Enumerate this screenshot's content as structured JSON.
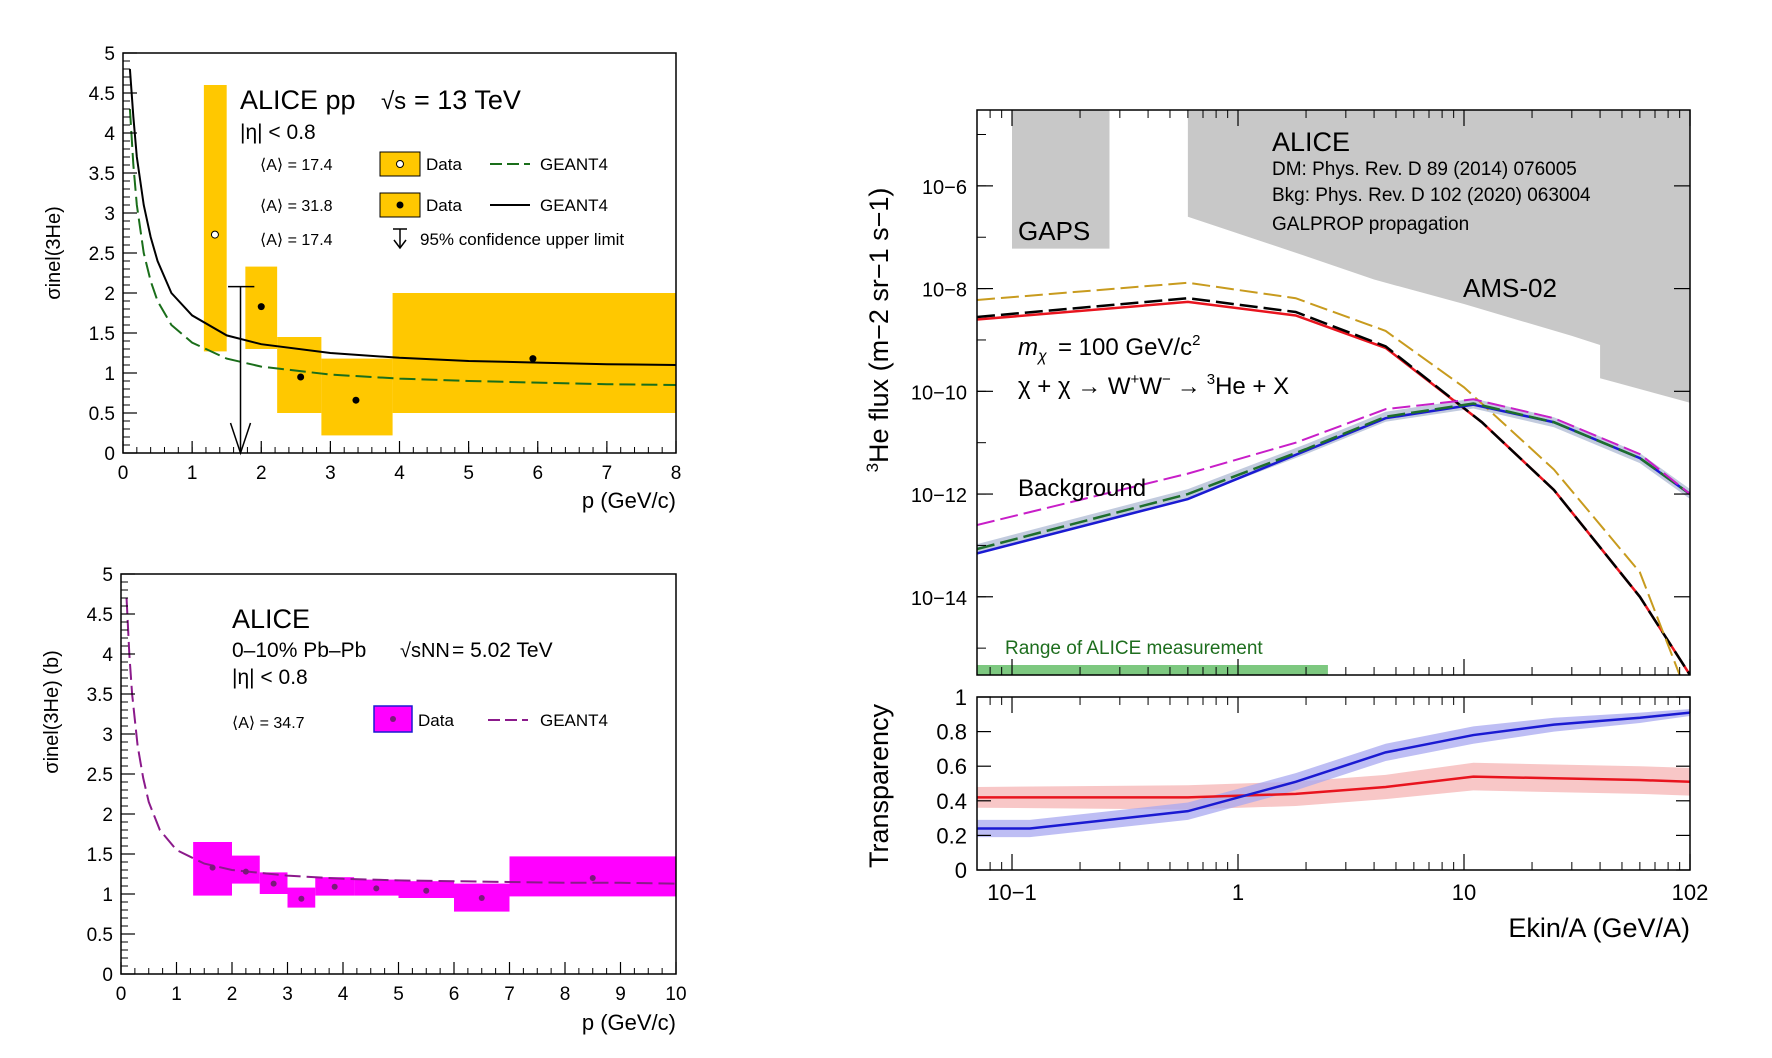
{
  "chart_data": [
    {
      "type": "scatter",
      "id": "pp",
      "title": "ALICE pp",
      "energy": "= 13 TeV",
      "eta": "|η| < 0.8",
      "xlabel": "p (GeV/c)",
      "ylabel": "σinel(3He)",
      "xlim": [
        0,
        8
      ],
      "ylim": [
        0,
        5
      ],
      "xticks": [
        0,
        1,
        2,
        3,
        4,
        5,
        6,
        7,
        8
      ],
      "yticks": [
        0,
        0.5,
        1,
        1.5,
        2,
        2.5,
        3,
        3.5,
        4,
        4.5,
        5
      ],
      "legend": [
        {
          "A": "⟨A⟩ = 17.4",
          "marker": "open",
          "label": "Data",
          "model": "GEANT4",
          "style": "green-dashed"
        },
        {
          "A": "⟨A⟩ = 31.8",
          "marker": "filled",
          "label": "Data",
          "model": "GEANT4",
          "style": "black-solid"
        },
        {
          "A": "⟨A⟩ = 17.4",
          "marker": "arrow",
          "label": "95% confidence upper limit"
        }
      ],
      "colors": {
        "box": "#ffc800",
        "geant_a": "#1a6e1a",
        "geant_b": "#000000"
      },
      "series": [
        {
          "name": "Data ⟨A⟩ = 17.4",
          "marker": "open",
          "points": [
            {
              "x": 1.33,
              "y": 2.73,
              "xlo": 1.17,
              "xhi": 1.5,
              "ylo": 1.27,
              "yhi": 4.6
            }
          ]
        },
        {
          "name": "Data ⟨A⟩ = 31.8",
          "marker": "filled",
          "points": [
            {
              "x": 2.0,
              "y": 1.83,
              "xlo": 1.77,
              "xhi": 2.23,
              "ylo": 1.3,
              "yhi": 2.33
            },
            {
              "x": 2.57,
              "y": 0.95,
              "xlo": 2.23,
              "xhi": 2.87,
              "ylo": 0.5,
              "yhi": 1.45
            },
            {
              "x": 3.37,
              "y": 0.66,
              "xlo": 2.87,
              "xhi": 3.9,
              "ylo": 0.22,
              "yhi": 1.18
            },
            {
              "x": 5.93,
              "y": 1.18,
              "xlo": 3.9,
              "xhi": 8.0,
              "ylo": 0.5,
              "yhi": 2.0
            }
          ]
        },
        {
          "name": "95% confidence upper limit",
          "points": [
            {
              "x": 1.7,
              "y": 2.08,
              "xlo": 1.52,
              "xhi": 1.9
            }
          ]
        }
      ],
      "curves": [
        {
          "name": "GEANT4 ⟨A⟩ = 17.4",
          "style": "dashed",
          "x": [
            0.1,
            0.15,
            0.2,
            0.3,
            0.4,
            0.5,
            0.7,
            1,
            1.5,
            2,
            3,
            4,
            5,
            6,
            7,
            8
          ],
          "y": [
            4.3,
            3.6,
            3.1,
            2.5,
            2.15,
            1.9,
            1.6,
            1.38,
            1.18,
            1.08,
            0.98,
            0.93,
            0.9,
            0.88,
            0.86,
            0.85
          ]
        },
        {
          "name": "GEANT4 ⟨A⟩ = 31.8",
          "style": "solid",
          "x": [
            0.1,
            0.15,
            0.2,
            0.3,
            0.4,
            0.5,
            0.7,
            1,
            1.5,
            2,
            3,
            4,
            5,
            6,
            7,
            8
          ],
          "y": [
            4.8,
            4.2,
            3.7,
            3.1,
            2.7,
            2.4,
            2.0,
            1.72,
            1.47,
            1.36,
            1.25,
            1.19,
            1.15,
            1.13,
            1.11,
            1.1
          ]
        }
      ]
    },
    {
      "type": "scatter",
      "id": "pbpb",
      "title": "ALICE",
      "system": "0–10% Pb–Pb",
      "energy": "= 5.02 TeV",
      "eta": "|η| < 0.8",
      "xlabel": "p (GeV/c)",
      "ylabel": "σinel(3He) (b)",
      "xlim": [
        0,
        10
      ],
      "ylim": [
        0,
        5
      ],
      "xticks": [
        0,
        1,
        2,
        3,
        4,
        5,
        6,
        7,
        8,
        9,
        10
      ],
      "yticks": [
        0,
        0.5,
        1,
        1.5,
        2,
        2.5,
        3,
        3.5,
        4,
        4.5,
        5
      ],
      "legend": [
        {
          "A": "⟨A⟩ = 34.7",
          "label": "Data",
          "model": "GEANT4"
        }
      ],
      "colors": {
        "box": "#ff00ff",
        "geant": "#8b1a8b"
      },
      "series": [
        {
          "name": "Data ⟨A⟩ = 34.7",
          "points": [
            {
              "x": 1.65,
              "y": 1.33,
              "xlo": 1.3,
              "xhi": 2.0,
              "ylo": 0.98,
              "yhi": 1.65
            },
            {
              "x": 2.25,
              "y": 1.28,
              "xlo": 2.0,
              "xhi": 2.5,
              "ylo": 1.13,
              "yhi": 1.48
            },
            {
              "x": 2.75,
              "y": 1.13,
              "xlo": 2.5,
              "xhi": 3.0,
              "ylo": 1.0,
              "yhi": 1.27
            },
            {
              "x": 3.25,
              "y": 0.94,
              "xlo": 3.0,
              "xhi": 3.5,
              "ylo": 0.83,
              "yhi": 1.08
            },
            {
              "x": 3.85,
              "y": 1.09,
              "xlo": 3.5,
              "xhi": 4.2,
              "ylo": 0.98,
              "yhi": 1.21
            },
            {
              "x": 4.6,
              "y": 1.07,
              "xlo": 4.2,
              "xhi": 5.0,
              "ylo": 0.98,
              "yhi": 1.18
            },
            {
              "x": 5.5,
              "y": 1.04,
              "xlo": 5.0,
              "xhi": 6.0,
              "ylo": 0.95,
              "yhi": 1.16
            },
            {
              "x": 6.5,
              "y": 0.95,
              "xlo": 6.0,
              "xhi": 7.0,
              "ylo": 0.78,
              "yhi": 1.13
            },
            {
              "x": 8.5,
              "y": 1.2,
              "xlo": 7.0,
              "xhi": 10.0,
              "ylo": 0.97,
              "yhi": 1.47
            }
          ]
        }
      ],
      "curves": [
        {
          "name": "GEANT4",
          "style": "dashed",
          "x": [
            0.1,
            0.15,
            0.2,
            0.3,
            0.4,
            0.5,
            0.7,
            1,
            1.5,
            2,
            3,
            4,
            5,
            6,
            7,
            8,
            9,
            10
          ],
          "y": [
            4.7,
            4.0,
            3.5,
            2.85,
            2.45,
            2.15,
            1.8,
            1.55,
            1.38,
            1.3,
            1.23,
            1.19,
            1.17,
            1.16,
            1.15,
            1.14,
            1.14,
            1.13
          ]
        }
      ]
    },
    {
      "type": "line",
      "id": "flux",
      "title": "ALICE",
      "refs": [
        "DM: Phys. Rev. D 89 (2014) 076005",
        "Bkg: Phys. Rev. D 102 (2020) 063004",
        "GALPROP propagation"
      ],
      "labels": {
        "gaps": "GAPS",
        "ams": "AMS-02",
        "background": "Background",
        "mass": "= 100 GeV/c",
        "process": "χ + χ → W",
        "process_end": "→",
        "process_tail": "He + X",
        "range": "Range of ALICE measurement"
      },
      "ylabel": "He flux (m−2 sr−1 s−1)",
      "xlabel": "Ekin/A (GeV/A)",
      "xscale": "log",
      "yscale": "log",
      "xlim": [
        0.07,
        100
      ],
      "ylim": [
        3e-16,
        3e-05
      ],
      "yticks": [
        "10−6",
        "10−8",
        "10−10",
        "10−12",
        "10−14"
      ],
      "colors": {
        "dm_red": "#e8141e",
        "dm_black": "#000000",
        "dm_gold": "#c89b1e",
        "bkg_blue": "#1a1ad2",
        "bkg_green": "#1e6e2d",
        "bkg_magenta": "#c81ec8",
        "excl": "#c8c8c8",
        "range": "#7dc880"
      },
      "series": [
        {
          "name": "DM (red)",
          "x": [
            0.07,
            0.6,
            1.8,
            4.5,
            12,
            25,
            60,
            100
          ],
          "y": [
            2.5e-09,
            5.5e-09,
            3e-09,
            7e-10,
            2.5e-11,
            1.2e-12,
            1e-14,
            3e-16
          ]
        },
        {
          "name": "DM (black dashed)",
          "x": [
            0.07,
            0.6,
            1.8,
            4.5,
            12,
            25,
            60,
            100
          ],
          "y": [
            2.8e-09,
            6.5e-09,
            3.5e-09,
            7.5e-10,
            2.5e-11,
            1.2e-12,
            1e-14,
            3e-16
          ]
        },
        {
          "name": "DM (gold dashed)",
          "x": [
            0.07,
            0.6,
            1.8,
            4.5,
            10,
            25,
            60,
            90
          ],
          "y": [
            6e-09,
            1.3e-08,
            6.5e-09,
            1.5e-09,
            1.2e-10,
            3e-12,
            3e-14,
            3e-16
          ]
        },
        {
          "name": "Background (blue)",
          "x": [
            0.07,
            0.6,
            2.0,
            4.5,
            11,
            25,
            60,
            100
          ],
          "y": [
            7e-14,
            8e-13,
            7e-12,
            3e-11,
            5.5e-11,
            2.5e-11,
            5e-12,
            1e-12
          ]
        },
        {
          "name": "Background (green)",
          "x": [
            0.07,
            0.6,
            2.0,
            4.5,
            11,
            25,
            60,
            100
          ],
          "y": [
            8.5e-14,
            1e-12,
            7.5e-12,
            3.2e-11,
            5.8e-11,
            2.5e-11,
            5e-12,
            1e-12
          ]
        },
        {
          "name": "Background (magenta dashed)",
          "x": [
            0.07,
            0.6,
            1.8,
            4.5,
            11,
            25,
            60,
            100
          ],
          "y": [
            2.5e-13,
            2.5e-12,
            1e-11,
            4.5e-11,
            7e-11,
            3e-11,
            6e-12,
            1e-12
          ]
        }
      ],
      "regions": [
        {
          "name": "GAPS",
          "x": [
            0.1,
            0.27
          ],
          "y": [
            6e-08,
            3e-05
          ]
        },
        {
          "name": "AMS-02",
          "x": [
            0.6,
            100
          ],
          "y": "shaded upper region"
        }
      ],
      "range_bar": {
        "x": [
          0.07,
          2.5
        ]
      }
    },
    {
      "type": "area",
      "id": "transparency",
      "ylabel": "Transparency",
      "xlabel": "Ekin/A (GeV/A)",
      "xscale": "log",
      "xlim": [
        0.07,
        100
      ],
      "ylim": [
        0,
        1
      ],
      "yticks": [
        0,
        0.2,
        0.4,
        0.6,
        0.8,
        1
      ],
      "xticks": [
        "10−1",
        "1",
        "10",
        "102"
      ],
      "series": [
        {
          "name": "red",
          "x": [
            0.07,
            0.6,
            1.8,
            4.5,
            11,
            25,
            60,
            100
          ],
          "y": [
            0.42,
            0.42,
            0.44,
            0.48,
            0.54,
            0.53,
            0.52,
            0.51
          ],
          "band": [
            0.06,
            0.07,
            0.07,
            0.07,
            0.08,
            0.08,
            0.08,
            0.08
          ]
        },
        {
          "name": "blue",
          "x": [
            0.07,
            0.12,
            0.6,
            1.8,
            4.5,
            11,
            25,
            60,
            100
          ],
          "y": [
            0.24,
            0.24,
            0.34,
            0.51,
            0.68,
            0.78,
            0.84,
            0.88,
            0.91
          ],
          "band": [
            0.05,
            0.05,
            0.05,
            0.05,
            0.05,
            0.05,
            0.04,
            0.03,
            0.02
          ]
        }
      ]
    }
  ]
}
